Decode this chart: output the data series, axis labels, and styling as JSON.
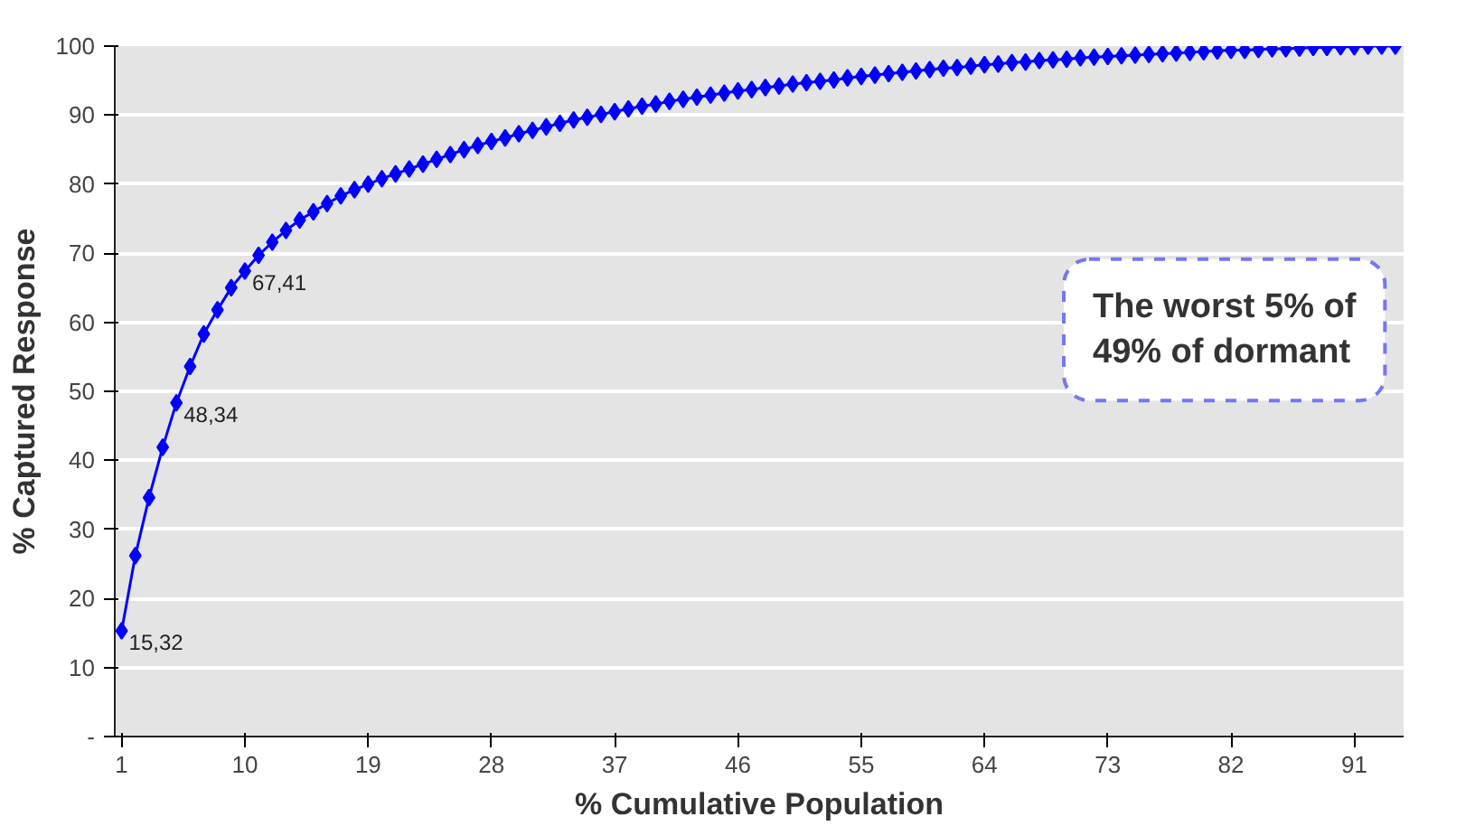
{
  "chart_data": {
    "type": "line",
    "xlabel": "% Cumulative Population",
    "ylabel": "% Captured Response",
    "x": [
      1,
      2,
      3,
      4,
      5,
      6,
      7,
      8,
      9,
      10,
      11,
      12,
      13,
      14,
      15,
      16,
      17,
      18,
      19,
      20,
      21,
      22,
      23,
      24,
      25,
      26,
      27,
      28,
      29,
      30,
      31,
      32,
      33,
      34,
      35,
      36,
      37,
      38,
      39,
      40,
      41,
      42,
      43,
      44,
      45,
      46,
      47,
      48,
      49,
      50,
      51,
      52,
      53,
      54,
      55,
      56,
      57,
      58,
      59,
      60,
      61,
      62,
      63,
      64,
      65,
      66,
      67,
      68,
      69,
      70,
      71,
      72,
      73,
      74,
      75,
      76,
      77,
      78,
      79,
      80,
      81,
      82,
      83,
      84,
      85,
      86,
      87,
      88,
      89,
      90,
      91,
      92,
      93,
      94
    ],
    "series": [
      {
        "color": "#0000ff",
        "values": [
          15.32,
          26.2,
          34.6,
          41.9,
          48.34,
          53.6,
          58.3,
          61.8,
          65.0,
          67.41,
          69.7,
          71.6,
          73.3,
          74.8,
          76.0,
          77.2,
          78.3,
          79.2,
          80.0,
          80.8,
          81.5,
          82.2,
          82.9,
          83.6,
          84.3,
          85.0,
          85.6,
          86.2,
          86.7,
          87.3,
          87.8,
          88.3,
          88.8,
          89.3,
          89.7,
          90.1,
          90.5,
          90.9,
          91.3,
          91.6,
          92.0,
          92.3,
          92.6,
          92.9,
          93.2,
          93.5,
          93.7,
          94.0,
          94.2,
          94.5,
          94.7,
          94.9,
          95.1,
          95.4,
          95.6,
          95.8,
          96.0,
          96.2,
          96.4,
          96.6,
          96.8,
          96.9,
          97.1,
          97.3,
          97.4,
          97.6,
          97.7,
          97.9,
          98.0,
          98.1,
          98.3,
          98.4,
          98.5,
          98.6,
          98.7,
          98.8,
          98.9,
          99.0,
          99.1,
          99.2,
          99.3,
          99.4,
          99.4,
          99.5,
          99.6,
          99.6,
          99.7,
          99.8,
          99.8,
          99.9,
          99.9,
          100.0,
          100.0,
          100.0
        ],
        "value_labels": [
          "15,32",
          null,
          null,
          null,
          "48,34",
          null,
          null,
          null,
          null,
          "67,41",
          null,
          null,
          null,
          null,
          null,
          null,
          null,
          null,
          null,
          null,
          null,
          null,
          null,
          null,
          null,
          null,
          null,
          null,
          null,
          null,
          null,
          null,
          null,
          null,
          null,
          null,
          null,
          null,
          null,
          null,
          null,
          null,
          null,
          null,
          null,
          null,
          null,
          null,
          null,
          null,
          null,
          null,
          null,
          null,
          null,
          null,
          null,
          null,
          null,
          null,
          null,
          null,
          null,
          null,
          null,
          null,
          null,
          null,
          null,
          null,
          null,
          null,
          null,
          null,
          null,
          null,
          null,
          null,
          null,
          null,
          null,
          null,
          null,
          null,
          null,
          null,
          null,
          null,
          null,
          null,
          null,
          null,
          null,
          null
        ]
      }
    ],
    "xlim": [
      0.5,
      94.6
    ],
    "xticks": [
      1,
      10,
      19,
      28,
      37,
      46,
      55,
      64,
      73,
      82,
      91
    ],
    "ylim": [
      0,
      100
    ],
    "yticks": [
      {
        "value": 0,
        "label": "-"
      },
      10,
      20,
      30,
      40,
      50,
      60,
      70,
      80,
      90,
      100
    ],
    "grid": "y",
    "marker": "diamond",
    "line_style": "solid",
    "annotations": [
      "The worst 5% of\n49% of dormant"
    ]
  }
}
